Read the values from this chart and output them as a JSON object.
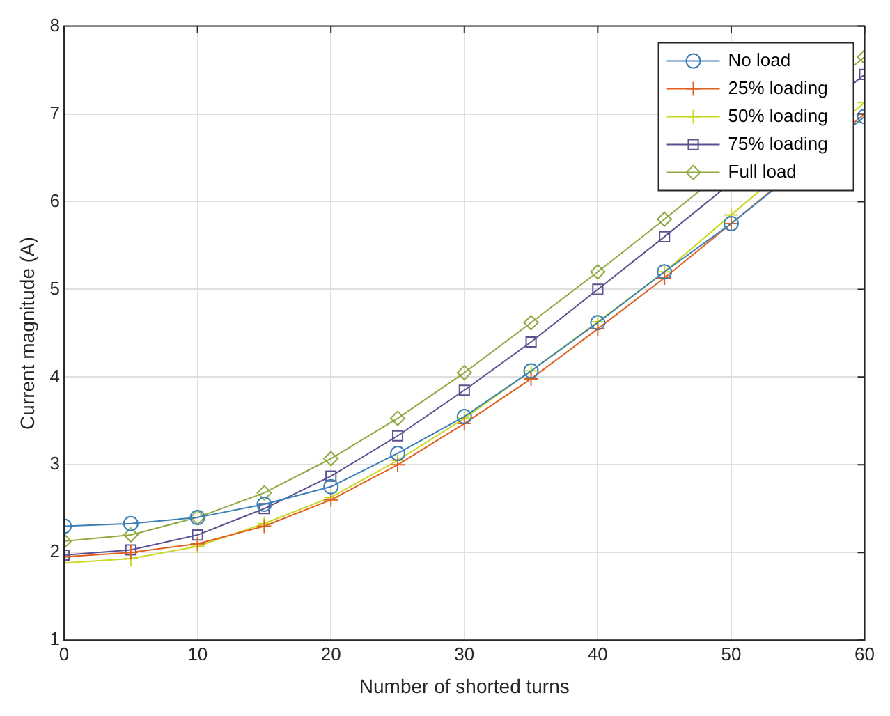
{
  "chart_data": {
    "type": "line",
    "xlabel": "Number of shorted turns",
    "ylabel": "Current magnitude (A)",
    "x": [
      0,
      5,
      10,
      15,
      20,
      25,
      30,
      35,
      40,
      45,
      50,
      55,
      60
    ],
    "xlim": [
      0,
      60
    ],
    "xticks": [
      0,
      10,
      20,
      30,
      40,
      50,
      60
    ],
    "ylim": [
      1,
      8
    ],
    "yticks": [
      1,
      2,
      3,
      4,
      5,
      6,
      7,
      8
    ],
    "grid": true,
    "legend": "top right",
    "series": [
      {
        "name": "No load",
        "color": "#3a7fb5",
        "marker": "circle",
        "values": [
          2.3,
          2.33,
          2.4,
          2.55,
          2.75,
          3.13,
          3.55,
          4.07,
          4.62,
          5.2,
          5.75,
          null,
          6.97
        ]
      },
      {
        "name": "25% loading",
        "color": "#e06020",
        "marker": "cross",
        "values": [
          1.95,
          2.0,
          2.1,
          2.3,
          2.6,
          3.0,
          3.47,
          3.98,
          4.55,
          5.13,
          5.75,
          null,
          7.0
        ]
      },
      {
        "name": "50% loading",
        "color": "#c8d820",
        "marker": "cross",
        "values": [
          1.88,
          1.93,
          2.07,
          2.33,
          2.63,
          3.05,
          3.53,
          4.07,
          4.63,
          5.2,
          5.85,
          null,
          7.13
        ]
      },
      {
        "name": "75% loading",
        "color": "#5c5090",
        "marker": "square",
        "values": [
          1.97,
          2.03,
          2.2,
          2.5,
          2.87,
          3.33,
          3.85,
          4.4,
          5.0,
          5.6,
          null,
          null,
          7.45
        ]
      },
      {
        "name": "Full load",
        "color": "#90a840",
        "marker": "diamond",
        "values": [
          2.13,
          2.2,
          2.4,
          2.68,
          3.07,
          3.53,
          4.05,
          4.62,
          5.2,
          5.8,
          null,
          null,
          7.65
        ]
      }
    ]
  }
}
